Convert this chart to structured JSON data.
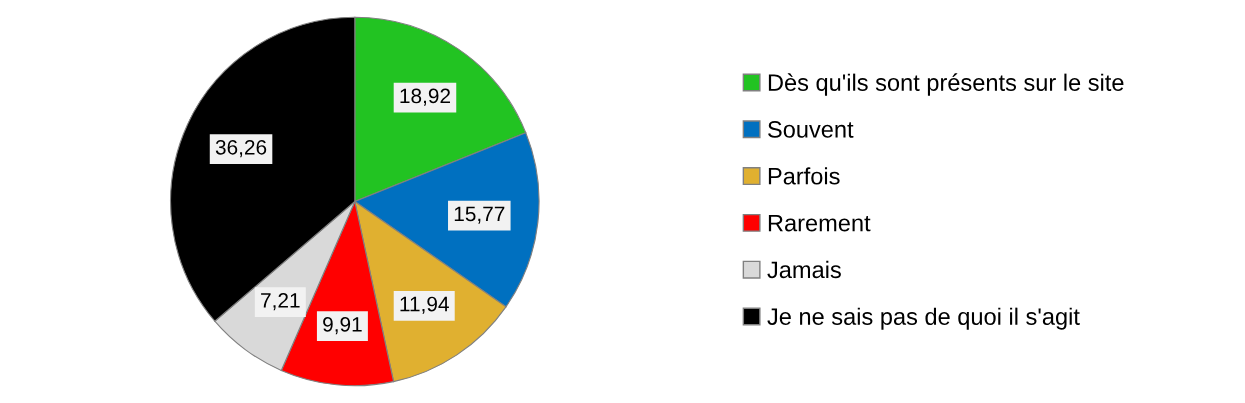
{
  "chart_data": {
    "type": "pie",
    "categories": [
      "Dès qu'ils sont présents sur le site",
      "Souvent",
      "Parfois",
      "Rarement",
      "Jamais",
      "Je ne sais pas de quoi il s'agit"
    ],
    "values": [
      18.92,
      15.77,
      11.94,
      9.91,
      7.21,
      36.26
    ],
    "colors": [
      "#22c322",
      "#0070c0",
      "#e0b030",
      "#ff0000",
      "#d9d9d9",
      "#000000"
    ],
    "value_labels": [
      "18,92",
      "15,77",
      "11,94",
      "9,91",
      "7,21",
      "36,26"
    ],
    "legend": "right"
  }
}
